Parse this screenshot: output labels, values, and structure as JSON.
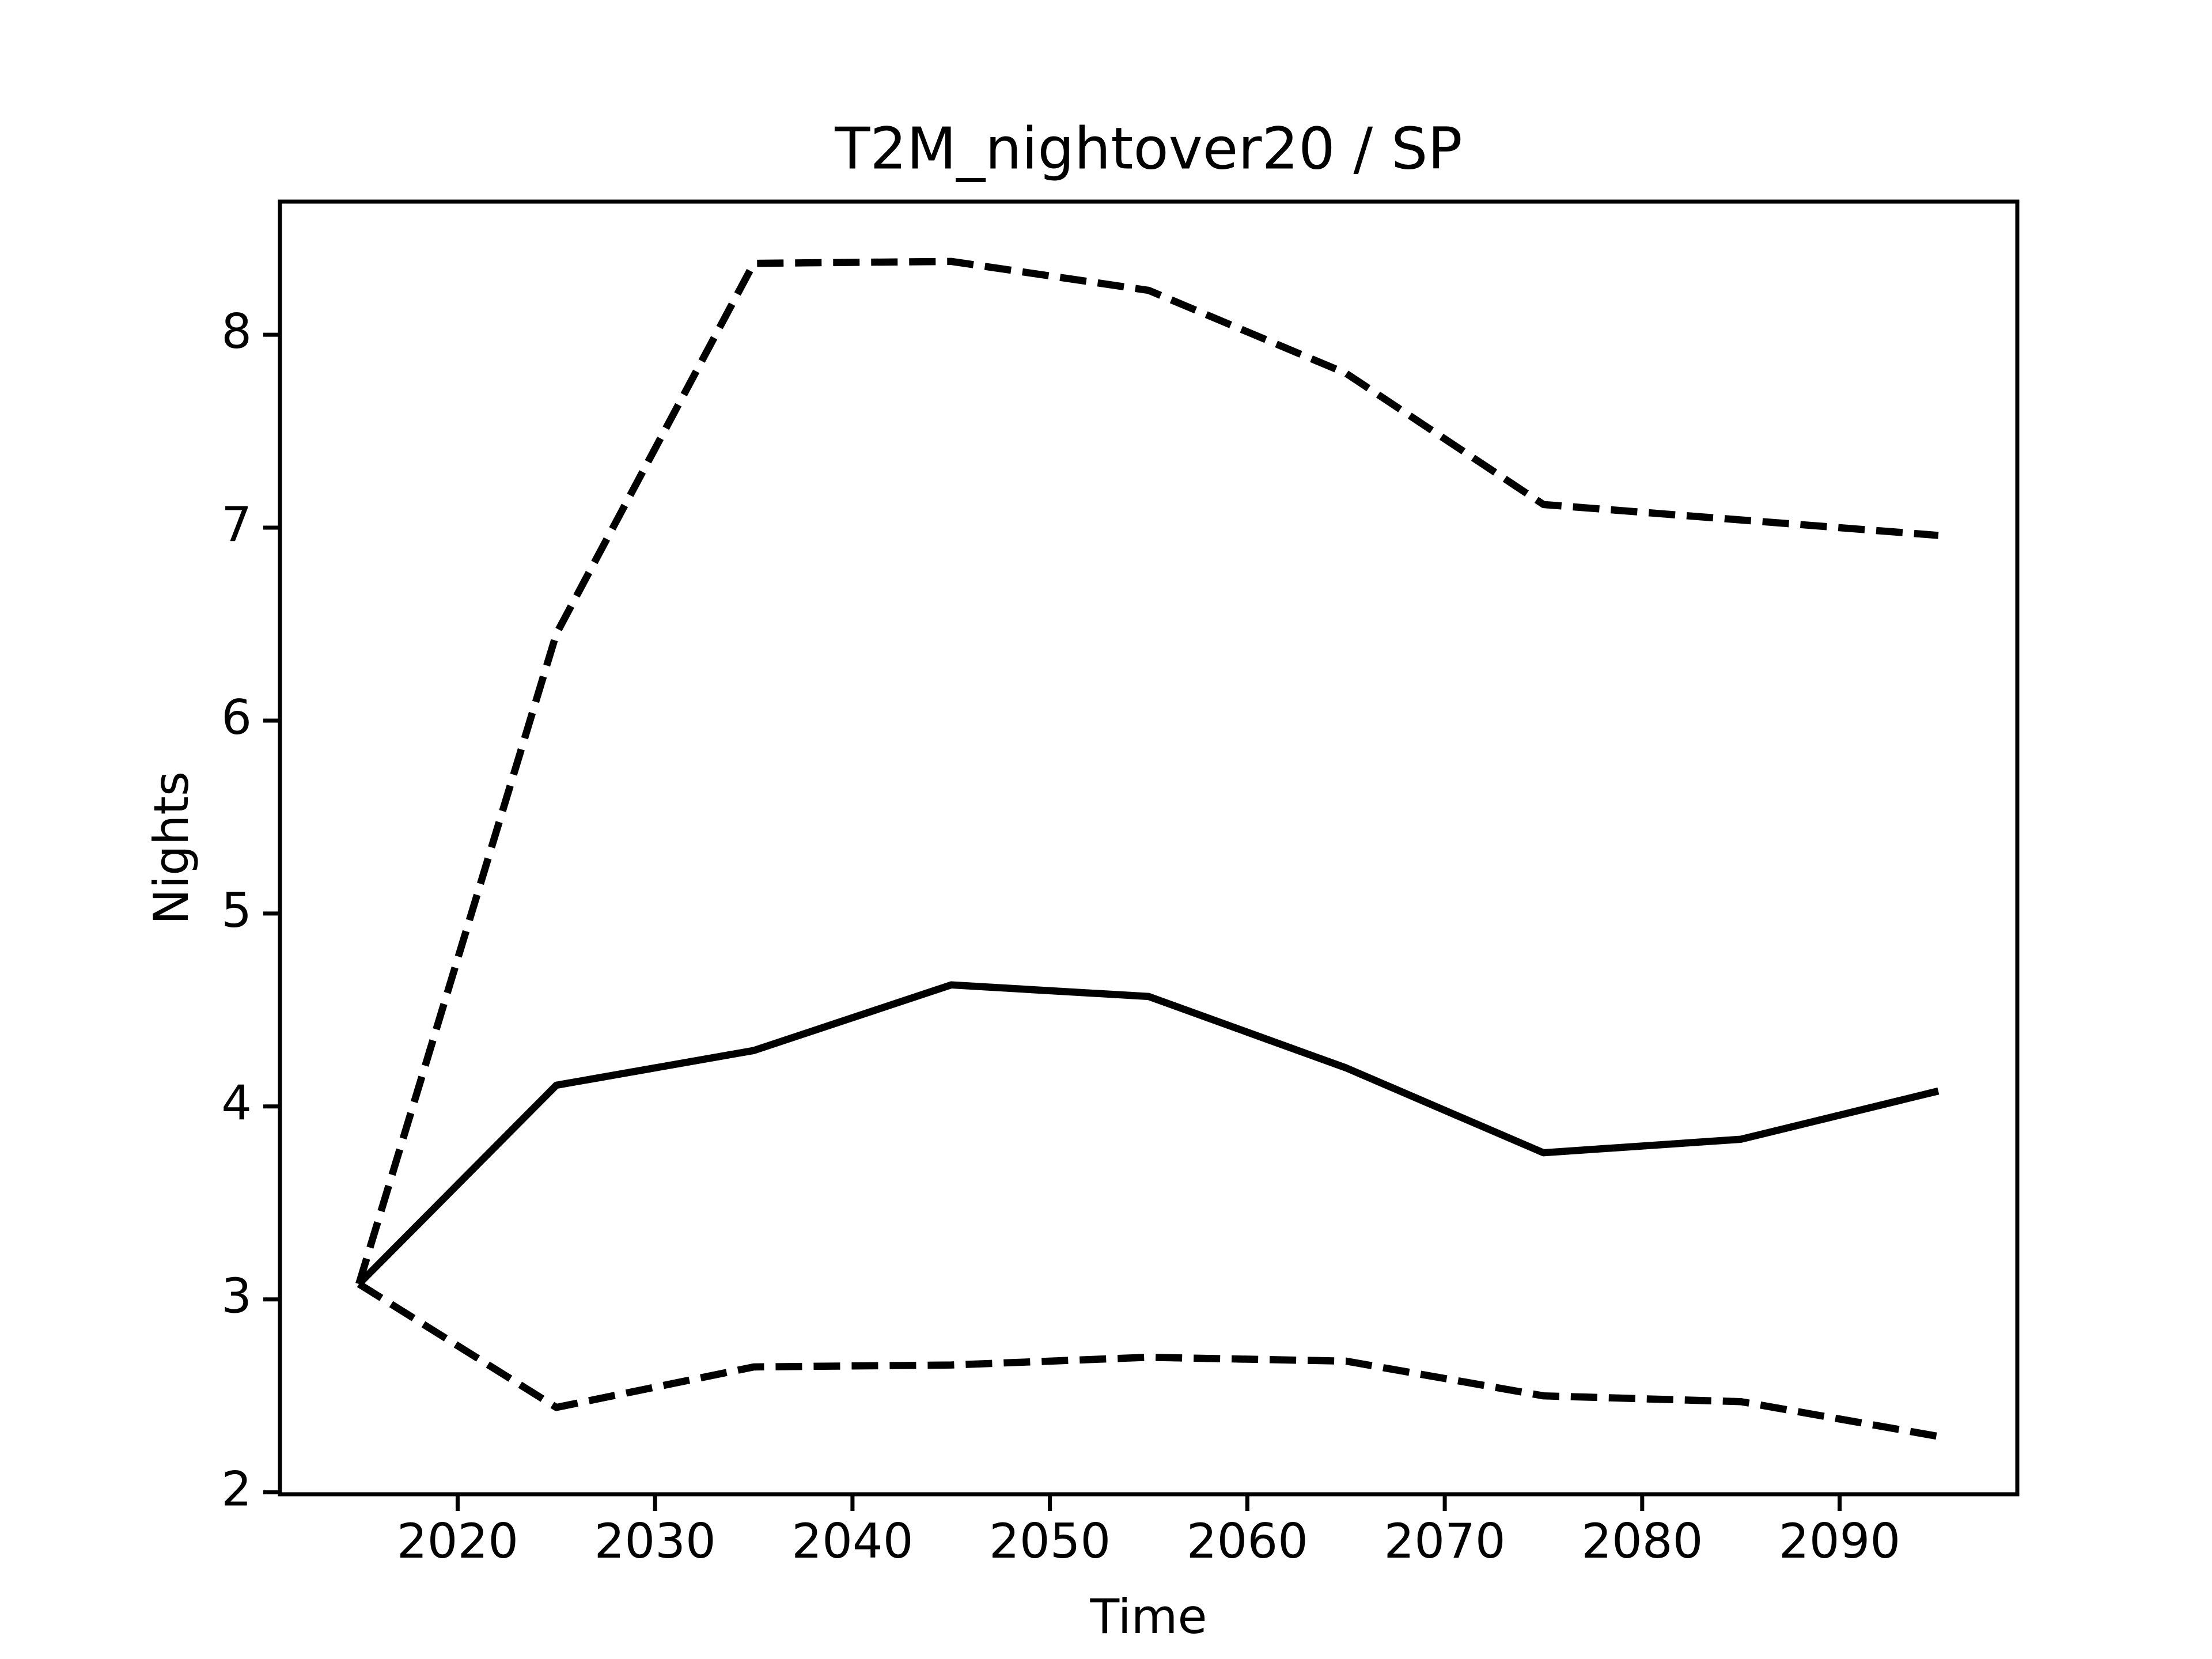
{
  "chart_data": {
    "type": "line",
    "title": "T2M_nightover20 / SP",
    "x_label": "Time",
    "y_label": "Nights",
    "x": [
      2015,
      2025,
      2035,
      2045,
      2055,
      2065,
      2075,
      2085,
      2095
    ],
    "series": [
      {
        "color": "#000000",
        "style": "solid",
        "values": [
          3.08,
          4.11,
          4.29,
          4.63,
          4.57,
          4.2,
          3.76,
          3.83,
          4.08
        ]
      },
      {
        "color": "#000000",
        "style": "dashed",
        "values": [
          3.08,
          6.45,
          8.37,
          8.38,
          8.23,
          7.8,
          7.12,
          7.04,
          6.96
        ]
      },
      {
        "color": "#000000",
        "style": "dashed",
        "values": [
          3.08,
          2.44,
          2.65,
          2.66,
          2.7,
          2.68,
          2.5,
          2.47,
          2.29
        ]
      }
    ],
    "xlim": [
      2011,
      2099
    ],
    "xticks": [
      2020,
      2030,
      2040,
      2050,
      2060,
      2070,
      2080,
      2090
    ],
    "ylim": [
      1.99,
      8.69
    ],
    "yticks": [
      2,
      3,
      4,
      5,
      6,
      7,
      8
    ],
    "grid": false
  }
}
